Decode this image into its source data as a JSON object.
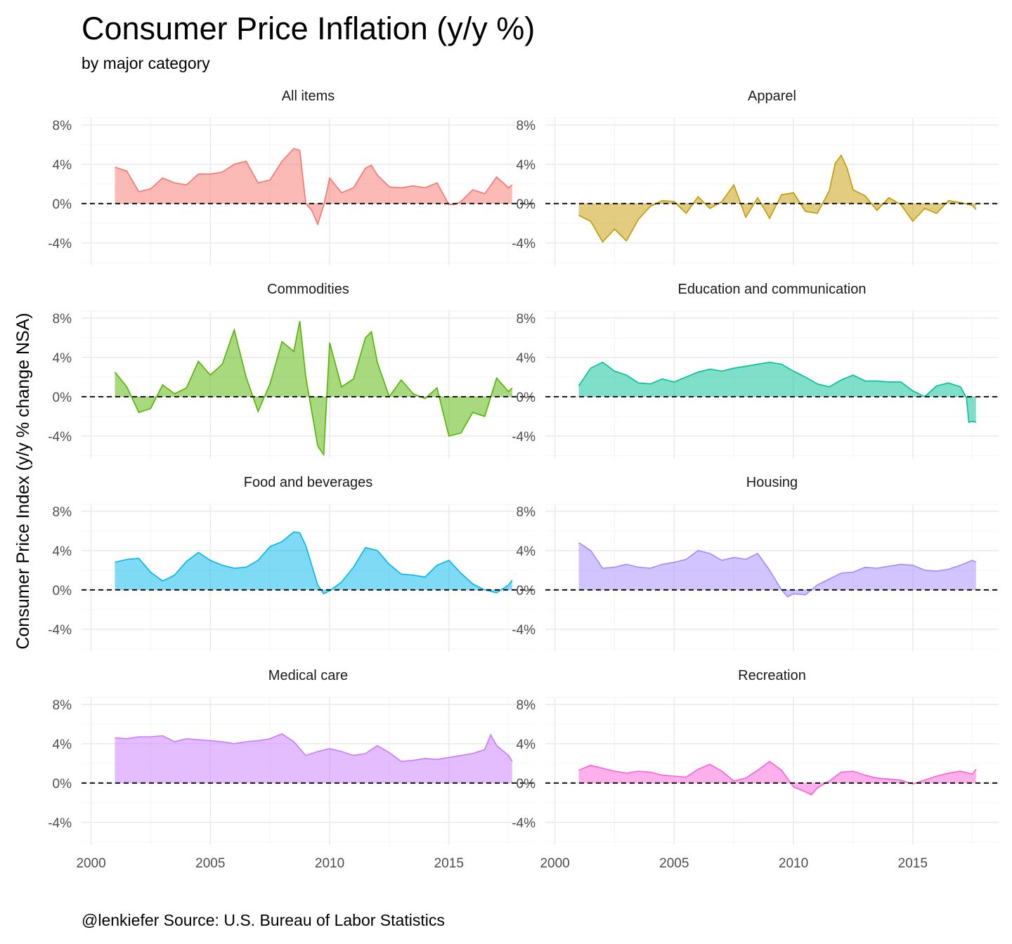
{
  "title": "Consumer Price Inflation (y/y %)",
  "subtitle": "by major category",
  "caption": "@lenkiefer Source: U.S. Bureau of Labor Statistics",
  "ylabel": "Consumer Price Index (y/y % change NSA)",
  "chart_data": {
    "type": "area",
    "x_ticks": [
      2000,
      2005,
      2010,
      2015
    ],
    "x_tick_labels": [
      "2000",
      "2005",
      "2010",
      "2015"
    ],
    "y_ticks": [
      -4,
      0,
      4,
      8
    ],
    "y_tick_labels": [
      "-4%",
      "0%",
      "4%",
      "8%"
    ],
    "xlim": [
      1999.6,
      2018.6
    ],
    "ylim": [
      -6.3,
      8.7
    ],
    "reference_line": 0,
    "panels": [
      {
        "label": "All items",
        "color": "#F8766D",
        "x": [
          2001.0,
          2001.5,
          2002.0,
          2002.5,
          2003.0,
          2003.5,
          2004.0,
          2004.5,
          2005.0,
          2005.5,
          2006.0,
          2006.5,
          2007.0,
          2007.5,
          2008.0,
          2008.5,
          2008.75,
          2009.0,
          2009.25,
          2009.5,
          2009.75,
          2010.0,
          2010.5,
          2011.0,
          2011.5,
          2011.75,
          2012.0,
          2012.5,
          2013.0,
          2013.5,
          2014.0,
          2014.5,
          2015.0,
          2015.25,
          2015.5,
          2016.0,
          2016.5,
          2017.0,
          2017.5,
          2017.65
        ],
        "values": [
          3.7,
          3.3,
          1.2,
          1.5,
          2.6,
          2.1,
          1.9,
          3.0,
          3.0,
          3.2,
          4.0,
          4.3,
          2.1,
          2.4,
          4.3,
          5.6,
          5.4,
          0.0,
          -0.7,
          -2.1,
          -0.2,
          2.6,
          1.1,
          1.6,
          3.6,
          3.9,
          2.9,
          1.7,
          1.6,
          1.8,
          1.6,
          2.1,
          -0.1,
          -0.1,
          0.2,
          1.4,
          1.0,
          2.7,
          1.6,
          1.9
        ]
      },
      {
        "label": "Apparel",
        "color": "#C49A00",
        "x": [
          2001.0,
          2001.5,
          2002.0,
          2002.5,
          2003.0,
          2003.5,
          2004.0,
          2004.5,
          2005.0,
          2005.5,
          2006.0,
          2006.5,
          2007.0,
          2007.5,
          2008.0,
          2008.5,
          2009.0,
          2009.5,
          2010.0,
          2010.5,
          2011.0,
          2011.5,
          2011.75,
          2012.0,
          2012.25,
          2012.5,
          2013.0,
          2013.5,
          2014.0,
          2014.5,
          2015.0,
          2015.5,
          2016.0,
          2016.5,
          2017.0,
          2017.5,
          2017.65
        ],
        "values": [
          -1.2,
          -1.8,
          -3.9,
          -2.6,
          -3.8,
          -1.6,
          -0.3,
          0.3,
          0.2,
          -1.0,
          0.7,
          -0.5,
          0.2,
          1.9,
          -1.4,
          0.6,
          -1.5,
          0.9,
          1.1,
          -0.8,
          -1.0,
          1.3,
          4.1,
          4.9,
          3.6,
          1.4,
          0.8,
          -0.7,
          0.6,
          -0.1,
          -1.8,
          -0.5,
          -1.0,
          0.3,
          0.1,
          -0.2,
          -0.6
        ]
      },
      {
        "label": "Commodities",
        "color": "#53B400",
        "x": [
          2001.0,
          2001.5,
          2002.0,
          2002.5,
          2003.0,
          2003.5,
          2004.0,
          2004.5,
          2005.0,
          2005.5,
          2006.0,
          2006.5,
          2007.0,
          2007.5,
          2008.0,
          2008.5,
          2008.75,
          2009.0,
          2009.5,
          2009.75,
          2010.0,
          2010.5,
          2011.0,
          2011.5,
          2011.75,
          2012.0,
          2012.5,
          2013.0,
          2013.5,
          2014.0,
          2014.5,
          2015.0,
          2015.5,
          2016.0,
          2016.5,
          2017.0,
          2017.5,
          2017.65
        ],
        "values": [
          2.5,
          1.0,
          -1.6,
          -1.2,
          1.2,
          0.3,
          0.9,
          3.6,
          2.2,
          3.3,
          6.8,
          2.0,
          -1.5,
          1.3,
          5.6,
          4.6,
          7.7,
          2.0,
          -5.0,
          -5.9,
          5.5,
          1.0,
          1.8,
          6.0,
          6.6,
          3.5,
          0.0,
          1.7,
          0.3,
          -0.2,
          0.9,
          -4.0,
          -3.7,
          -1.6,
          -2.0,
          1.9,
          0.5,
          0.9
        ]
      },
      {
        "label": "Education and communication",
        "color": "#00C094",
        "x": [
          2001.0,
          2001.5,
          2002.0,
          2002.5,
          2003.0,
          2003.5,
          2004.0,
          2004.5,
          2005.0,
          2005.5,
          2006.0,
          2006.5,
          2007.0,
          2007.5,
          2008.0,
          2008.5,
          2009.0,
          2009.5,
          2010.0,
          2010.5,
          2011.0,
          2011.5,
          2012.0,
          2012.5,
          2013.0,
          2013.5,
          2014.0,
          2014.5,
          2015.0,
          2015.5,
          2016.0,
          2016.5,
          2017.0,
          2017.25,
          2017.35,
          2017.5,
          2017.65
        ],
        "values": [
          1.1,
          2.9,
          3.5,
          2.6,
          2.2,
          1.4,
          1.3,
          1.8,
          1.5,
          2.0,
          2.5,
          2.8,
          2.6,
          2.9,
          3.1,
          3.3,
          3.5,
          3.3,
          2.6,
          2.0,
          1.3,
          1.0,
          1.7,
          2.2,
          1.6,
          1.6,
          1.5,
          1.5,
          0.6,
          0.0,
          1.1,
          1.4,
          1.0,
          -0.1,
          -2.6,
          -2.5,
          -2.6
        ]
      },
      {
        "label": "Food and beverages",
        "color": "#00B6EB",
        "x": [
          2001.0,
          2001.5,
          2002.0,
          2002.5,
          2003.0,
          2003.5,
          2004.0,
          2004.5,
          2005.0,
          2005.5,
          2006.0,
          2006.5,
          2007.0,
          2007.5,
          2008.0,
          2008.5,
          2008.75,
          2009.0,
          2009.5,
          2009.75,
          2010.0,
          2010.5,
          2011.0,
          2011.5,
          2012.0,
          2012.5,
          2013.0,
          2013.5,
          2014.0,
          2014.5,
          2015.0,
          2015.5,
          2016.0,
          2016.5,
          2017.0,
          2017.5,
          2017.65
        ],
        "values": [
          2.8,
          3.1,
          3.2,
          1.8,
          0.9,
          1.5,
          2.9,
          3.8,
          3.0,
          2.5,
          2.2,
          2.3,
          3.0,
          4.4,
          4.9,
          5.9,
          5.8,
          4.5,
          0.5,
          -0.4,
          -0.1,
          0.8,
          2.3,
          4.3,
          4.0,
          2.6,
          1.6,
          1.5,
          1.3,
          2.5,
          3.0,
          1.7,
          0.6,
          0.0,
          -0.3,
          0.5,
          1.0
        ]
      },
      {
        "label": "Housing",
        "color": "#A58AFF",
        "x": [
          2001.0,
          2001.5,
          2002.0,
          2002.5,
          2003.0,
          2003.5,
          2004.0,
          2004.5,
          2005.0,
          2005.5,
          2006.0,
          2006.5,
          2007.0,
          2007.5,
          2008.0,
          2008.5,
          2009.0,
          2009.5,
          2009.75,
          2010.0,
          2010.5,
          2011.0,
          2011.5,
          2012.0,
          2012.5,
          2013.0,
          2013.5,
          2014.0,
          2014.5,
          2015.0,
          2015.5,
          2016.0,
          2016.5,
          2017.0,
          2017.5,
          2017.65
        ],
        "values": [
          4.8,
          4.0,
          2.2,
          2.3,
          2.6,
          2.3,
          2.2,
          2.6,
          2.8,
          3.1,
          4.0,
          3.7,
          3.0,
          3.3,
          3.1,
          3.7,
          2.0,
          0.0,
          -0.7,
          -0.4,
          -0.5,
          0.5,
          1.1,
          1.7,
          1.8,
          2.3,
          2.2,
          2.4,
          2.6,
          2.5,
          2.0,
          1.9,
          2.1,
          2.5,
          3.0,
          2.8
        ]
      },
      {
        "label": "Medical care",
        "color": "#C77CFF",
        "x": [
          2001.0,
          2001.5,
          2002.0,
          2002.5,
          2003.0,
          2003.5,
          2004.0,
          2004.5,
          2005.0,
          2005.5,
          2006.0,
          2006.5,
          2007.0,
          2007.5,
          2008.0,
          2008.5,
          2009.0,
          2009.5,
          2010.0,
          2010.5,
          2011.0,
          2011.5,
          2012.0,
          2012.5,
          2013.0,
          2013.5,
          2014.0,
          2014.5,
          2015.0,
          2015.5,
          2016.0,
          2016.5,
          2016.75,
          2017.0,
          2017.5,
          2017.65
        ],
        "values": [
          4.6,
          4.5,
          4.7,
          4.7,
          4.8,
          4.2,
          4.5,
          4.4,
          4.3,
          4.2,
          4.0,
          4.2,
          4.3,
          4.5,
          5.0,
          4.2,
          2.8,
          3.2,
          3.5,
          3.2,
          2.8,
          3.0,
          3.8,
          3.1,
          2.2,
          2.3,
          2.5,
          2.4,
          2.6,
          2.8,
          3.0,
          3.4,
          4.9,
          3.8,
          2.8,
          2.2
        ]
      },
      {
        "label": "Recreation",
        "color": "#FB61D7",
        "x": [
          2001.0,
          2001.5,
          2002.0,
          2002.5,
          2003.0,
          2003.5,
          2004.0,
          2004.5,
          2005.0,
          2005.5,
          2006.0,
          2006.5,
          2007.0,
          2007.5,
          2008.0,
          2008.5,
          2009.0,
          2009.5,
          2010.0,
          2010.5,
          2010.75,
          2011.0,
          2011.5,
          2012.0,
          2012.5,
          2013.0,
          2013.5,
          2014.0,
          2014.5,
          2015.0,
          2015.5,
          2016.0,
          2016.5,
          2017.0,
          2017.5,
          2017.65
        ],
        "values": [
          1.3,
          1.8,
          1.5,
          1.2,
          1.0,
          1.2,
          1.1,
          0.8,
          0.7,
          0.6,
          1.4,
          1.9,
          1.2,
          0.2,
          0.5,
          1.3,
          2.2,
          1.3,
          -0.4,
          -0.9,
          -1.2,
          -0.5,
          0.2,
          1.1,
          1.2,
          0.8,
          0.5,
          0.4,
          0.3,
          -0.1,
          0.3,
          0.7,
          1.0,
          1.2,
          0.9,
          1.4
        ]
      }
    ]
  }
}
